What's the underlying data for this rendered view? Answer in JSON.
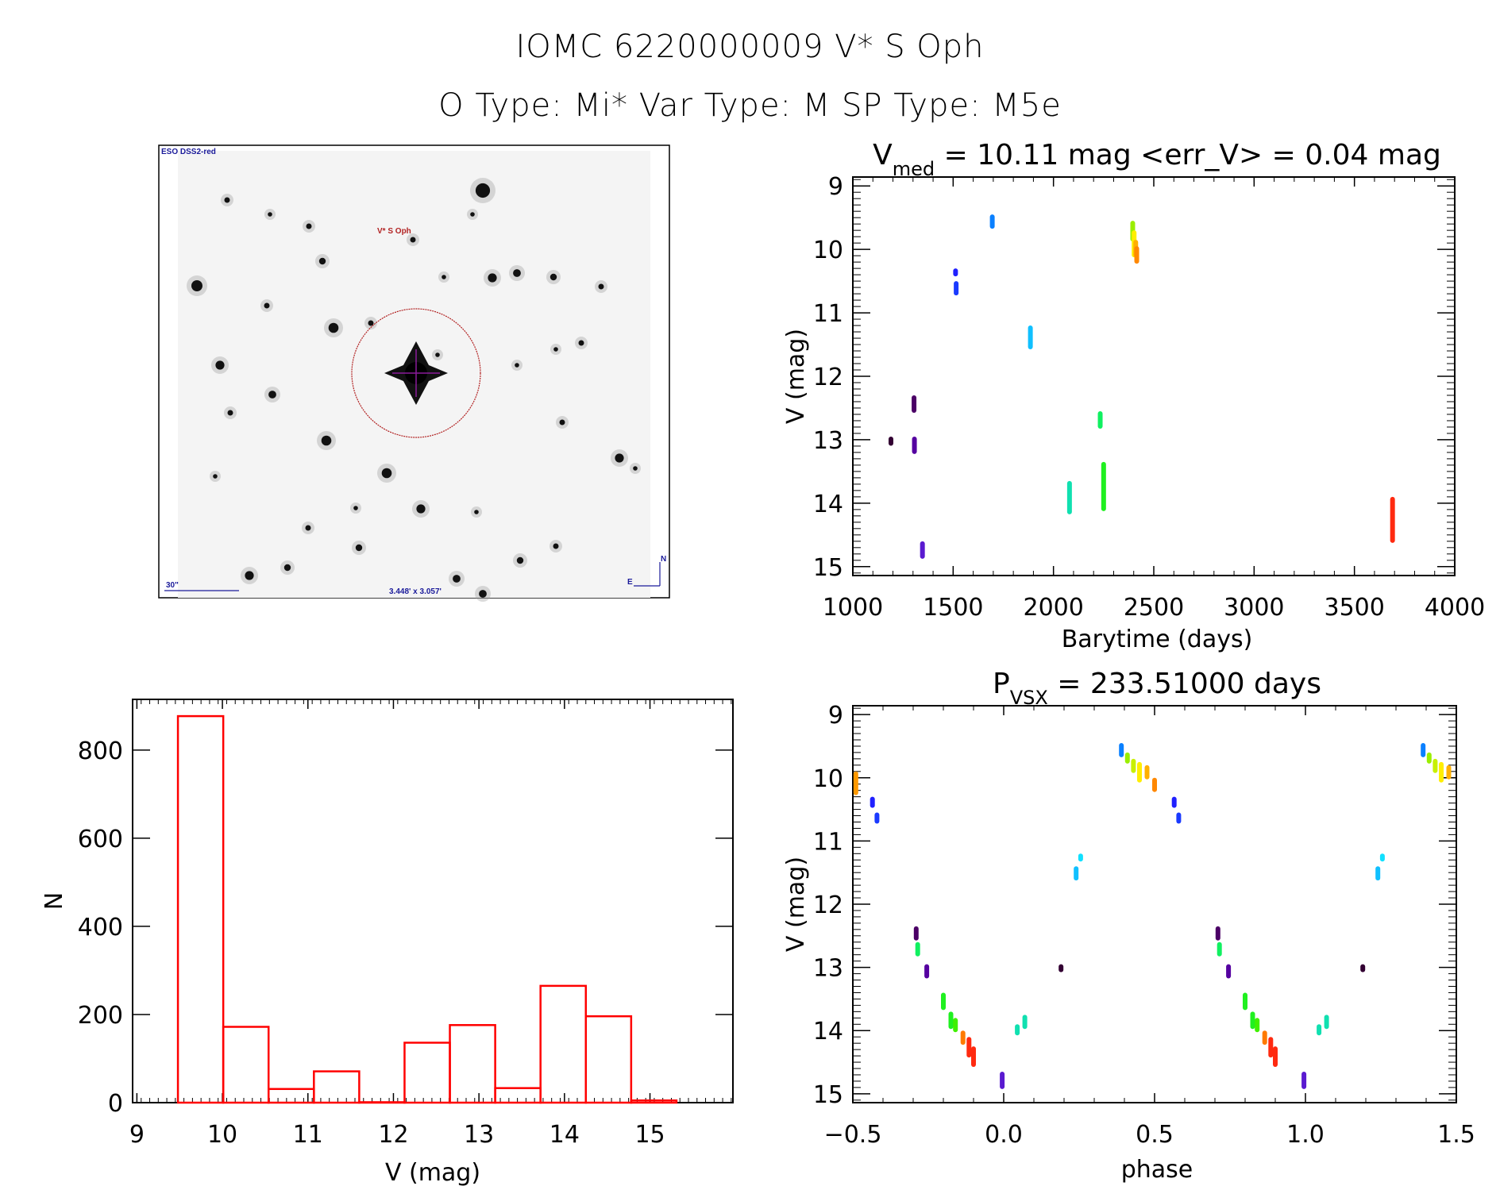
{
  "header": {
    "line1": "IOMC 6220000009    V* S Oph",
    "line2": "O Type: Mi*  Var Type: M  SP Type: M5e"
  },
  "finder": {
    "survey_label": "ESO DSS2-red",
    "target_label": "V* S Oph",
    "scale_label": "30\"",
    "fov_label": "3.448' x 3.057'",
    "north_label": "N",
    "east_label": "E",
    "circle_color": "#b22222",
    "label_color": "#1a1a9a"
  },
  "chart_data": [
    {
      "type": "scatter",
      "id": "lightcurve",
      "title_main": "V",
      "title_sub": "med",
      "title_rest": " = 10.11 mag <err_V> = 0.04 mag",
      "xlabel": "Barytime (days)",
      "ylabel": "V (mag)",
      "xlim": [
        1000,
        4000
      ],
      "ylim": [
        15.14,
        8.86
      ],
      "xticks": [
        1000,
        1500,
        2000,
        2500,
        3000,
        3500,
        4000
      ],
      "yticks": [
        9,
        10,
        11,
        12,
        13,
        14,
        15
      ],
      "clusters": [
        {
          "x": 1190,
          "y0": 12.95,
          "y1": 13.07,
          "color": "#330033"
        },
        {
          "x": 1305,
          "y0": 12.3,
          "y1": 12.55,
          "color": "#4b0066"
        },
        {
          "x": 1307,
          "y0": 12.95,
          "y1": 13.2,
          "color": "#5500a0"
        },
        {
          "x": 1347,
          "y0": 14.6,
          "y1": 14.85,
          "color": "#5a1ad0"
        },
        {
          "x": 1512,
          "y0": 10.3,
          "y1": 10.4,
          "color": "#2020ff"
        },
        {
          "x": 1515,
          "y0": 10.5,
          "y1": 10.7,
          "color": "#1a3aff"
        },
        {
          "x": 1695,
          "y0": 9.45,
          "y1": 9.65,
          "color": "#0a80ff"
        },
        {
          "x": 1885,
          "y0": 11.2,
          "y1": 11.55,
          "color": "#10c0ff"
        },
        {
          "x": 2080,
          "y0": 13.65,
          "y1": 14.15,
          "color": "#10e0b0"
        },
        {
          "x": 2233,
          "y0": 12.55,
          "y1": 12.8,
          "color": "#10f060"
        },
        {
          "x": 2250,
          "y0": 13.35,
          "y1": 14.1,
          "color": "#20f020"
        },
        {
          "x": 2395,
          "y0": 9.55,
          "y1": 9.85,
          "color": "#9aee00"
        },
        {
          "x": 2402,
          "y0": 9.7,
          "y1": 10.1,
          "color": "#ffee00"
        },
        {
          "x": 2410,
          "y0": 9.85,
          "y1": 10.1,
          "color": "#ffb000"
        },
        {
          "x": 2415,
          "y0": 9.95,
          "y1": 10.2,
          "color": "#ff8800"
        },
        {
          "x": 3690,
          "y0": 13.9,
          "y1": 14.6,
          "color": "#ff2a10"
        }
      ]
    },
    {
      "type": "bar",
      "id": "histogram",
      "xlabel": "V (mag)",
      "ylabel": "N",
      "xlim": [
        8.95,
        15.97
      ],
      "ylim": [
        0,
        915
      ],
      "xticks": [
        9,
        10,
        11,
        12,
        13,
        14,
        15
      ],
      "yticks": [
        0,
        200,
        400,
        600,
        800
      ],
      "bin_edges": [
        9.48,
        10.01,
        10.54,
        11.07,
        11.6,
        12.13,
        12.66,
        13.19,
        13.72,
        14.25,
        14.78,
        15.31
      ],
      "values": [
        877,
        172,
        31,
        71,
        1,
        136,
        176,
        33,
        265,
        196,
        5
      ],
      "color": "#ff0000"
    },
    {
      "type": "scatter",
      "id": "phased",
      "title_main": "P",
      "title_sub": "VSX",
      "title_rest": " = 233.51000 days",
      "xlabel": "phase",
      "ylabel": "V (mag)",
      "xlim": [
        -0.5,
        1.5
      ],
      "ylim": [
        15.14,
        8.86
      ],
      "xticks": [
        -0.5,
        0.0,
        0.5,
        1.0,
        1.5
      ],
      "xtick_labels": [
        "−0.5",
        "0.0",
        "0.5",
        "1.0",
        "1.5"
      ],
      "yticks": [
        9,
        10,
        11,
        12,
        13,
        14,
        15
      ],
      "clusters": [
        {
          "x": -0.49,
          "y0": 9.9,
          "y1": 10.25,
          "color": "#ff9900"
        },
        {
          "x": -0.435,
          "y0": 10.3,
          "y1": 10.45,
          "color": "#2020ff"
        },
        {
          "x": -0.42,
          "y0": 10.55,
          "y1": 10.7,
          "color": "#1a3aff"
        },
        {
          "x": -0.29,
          "y0": 12.35,
          "y1": 12.55,
          "color": "#4b0066"
        },
        {
          "x": -0.285,
          "y0": 12.6,
          "y1": 12.8,
          "color": "#10f060"
        },
        {
          "x": -0.255,
          "y0": 12.95,
          "y1": 13.15,
          "color": "#5500a0"
        },
        {
          "x": -0.2,
          "y0": 13.4,
          "y1": 13.65,
          "color": "#20f020"
        },
        {
          "x": -0.175,
          "y0": 13.7,
          "y1": 13.95,
          "color": "#20f020"
        },
        {
          "x": -0.16,
          "y0": 13.8,
          "y1": 14.0,
          "color": "#40f000"
        },
        {
          "x": -0.135,
          "y0": 14.0,
          "y1": 14.2,
          "color": "#ff7a00"
        },
        {
          "x": -0.115,
          "y0": 14.1,
          "y1": 14.4,
          "color": "#ff2a10"
        },
        {
          "x": -0.1,
          "y0": 14.25,
          "y1": 14.55,
          "color": "#ff2a10"
        },
        {
          "x": -0.005,
          "y0": 14.65,
          "y1": 14.9,
          "color": "#5a1ad0"
        },
        {
          "x": 0.045,
          "y0": 13.9,
          "y1": 14.05,
          "color": "#10e0b0"
        },
        {
          "x": 0.07,
          "y0": 13.75,
          "y1": 13.95,
          "color": "#10e0b0"
        },
        {
          "x": 0.19,
          "y0": 12.95,
          "y1": 13.05,
          "color": "#330033"
        },
        {
          "x": 0.24,
          "y0": 11.4,
          "y1": 11.6,
          "color": "#10c0ff"
        },
        {
          "x": 0.255,
          "y0": 11.2,
          "y1": 11.3,
          "color": "#10e0ff"
        },
        {
          "x": 0.39,
          "y0": 9.45,
          "y1": 9.65,
          "color": "#0a80ff"
        },
        {
          "x": 0.41,
          "y0": 9.6,
          "y1": 9.75,
          "color": "#9aee00"
        },
        {
          "x": 0.43,
          "y0": 9.7,
          "y1": 9.9,
          "color": "#c8f000"
        },
        {
          "x": 0.45,
          "y0": 9.75,
          "y1": 10.05,
          "color": "#ffee00"
        },
        {
          "x": 0.475,
          "y0": 9.8,
          "y1": 10.0,
          "color": "#ffb000"
        },
        {
          "x": 0.5,
          "y0": 10.0,
          "y1": 10.2,
          "color": "#ff8800"
        },
        {
          "x": 0.565,
          "y0": 10.3,
          "y1": 10.45,
          "color": "#2020ff"
        },
        {
          "x": 0.58,
          "y0": 10.55,
          "y1": 10.7,
          "color": "#1a3aff"
        },
        {
          "x": 0.71,
          "y0": 12.35,
          "y1": 12.55,
          "color": "#4b0066"
        },
        {
          "x": 0.715,
          "y0": 12.6,
          "y1": 12.8,
          "color": "#10f060"
        },
        {
          "x": 0.745,
          "y0": 12.95,
          "y1": 13.15,
          "color": "#5500a0"
        },
        {
          "x": 0.8,
          "y0": 13.4,
          "y1": 13.65,
          "color": "#20f020"
        },
        {
          "x": 0.825,
          "y0": 13.7,
          "y1": 13.95,
          "color": "#20f020"
        },
        {
          "x": 0.84,
          "y0": 13.8,
          "y1": 14.0,
          "color": "#40f000"
        },
        {
          "x": 0.865,
          "y0": 14.0,
          "y1": 14.2,
          "color": "#ff7a00"
        },
        {
          "x": 0.885,
          "y0": 14.1,
          "y1": 14.4,
          "color": "#ff2a10"
        },
        {
          "x": 0.9,
          "y0": 14.25,
          "y1": 14.55,
          "color": "#ff2a10"
        },
        {
          "x": 0.995,
          "y0": 14.65,
          "y1": 14.9,
          "color": "#5a1ad0"
        },
        {
          "x": 1.045,
          "y0": 13.9,
          "y1": 14.05,
          "color": "#10e0b0"
        },
        {
          "x": 1.07,
          "y0": 13.75,
          "y1": 13.95,
          "color": "#10e0b0"
        },
        {
          "x": 1.19,
          "y0": 12.95,
          "y1": 13.05,
          "color": "#330033"
        },
        {
          "x": 1.24,
          "y0": 11.4,
          "y1": 11.6,
          "color": "#10c0ff"
        },
        {
          "x": 1.255,
          "y0": 11.2,
          "y1": 11.3,
          "color": "#10e0ff"
        },
        {
          "x": 1.39,
          "y0": 9.45,
          "y1": 9.65,
          "color": "#0a80ff"
        },
        {
          "x": 1.41,
          "y0": 9.6,
          "y1": 9.75,
          "color": "#9aee00"
        },
        {
          "x": 1.43,
          "y0": 9.7,
          "y1": 9.9,
          "color": "#c8f000"
        },
        {
          "x": 1.45,
          "y0": 9.75,
          "y1": 10.05,
          "color": "#ffee00"
        },
        {
          "x": 1.475,
          "y0": 9.8,
          "y1": 10.0,
          "color": "#ffb000"
        }
      ]
    }
  ]
}
